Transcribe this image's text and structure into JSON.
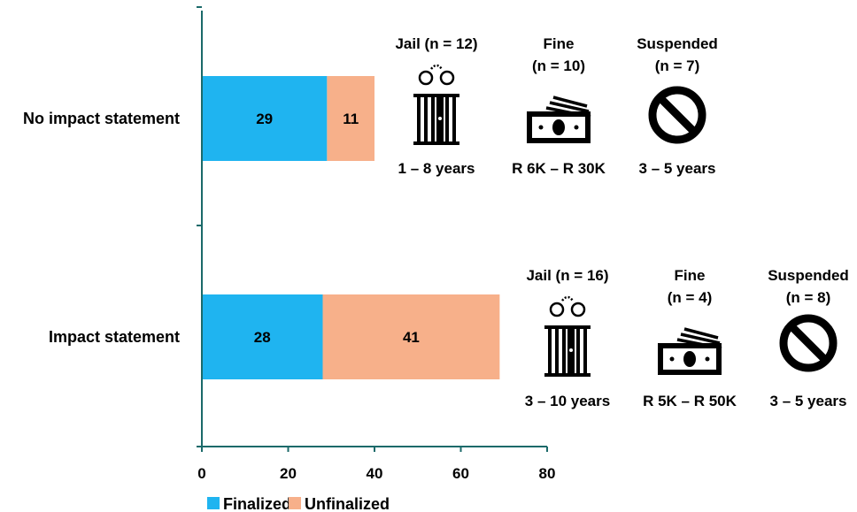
{
  "chart_data": {
    "type": "bar",
    "orientation": "horizontal",
    "stacked": true,
    "categories": [
      "No impact statement",
      "Impact statement"
    ],
    "series": [
      {
        "name": "Finalized",
        "values": [
          29,
          28
        ],
        "color": "#1fb4f0"
      },
      {
        "name": "Unfinalized",
        "values": [
          11,
          41
        ],
        "color": "#f7b08a"
      }
    ],
    "xlim": [
      0,
      80
    ],
    "x_ticks": [
      0,
      20,
      40,
      60,
      80
    ],
    "grid": false,
    "legend_position": "bottom-left",
    "axis_color": "#1b6a6a",
    "annotations": [
      {
        "category": "No impact statement",
        "items": [
          {
            "icon": "jail-icon",
            "heading": [
              "Jail (n = 12)"
            ],
            "range": "1 – 8 years"
          },
          {
            "icon": "money-icon",
            "heading": [
              "Fine",
              "(n = 10)"
            ],
            "range": "R 6K – R 30K"
          },
          {
            "icon": "prohibited-icon",
            "heading": [
              "Suspended",
              "(n = 7)"
            ],
            "range": "3 – 5 years"
          }
        ]
      },
      {
        "category": "Impact statement",
        "items": [
          {
            "icon": "jail-icon",
            "heading": [
              "Jail (n = 16)"
            ],
            "range": "3 – 10 years"
          },
          {
            "icon": "money-icon",
            "heading": [
              "Fine",
              "(n = 4)"
            ],
            "range": "R 5K – R 50K"
          },
          {
            "icon": "prohibited-icon",
            "heading": [
              "Suspended",
              "(n = 8)"
            ],
            "range": "3 – 5 years"
          }
        ]
      }
    ]
  }
}
